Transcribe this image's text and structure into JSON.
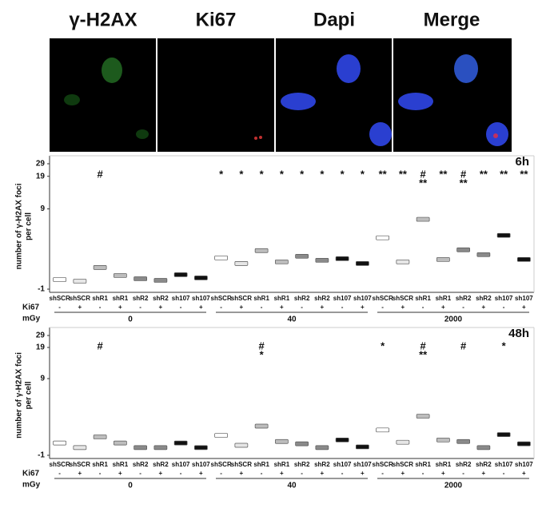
{
  "panels": [
    "γ-H2AX",
    "Ki67",
    "Dapi",
    "Merge"
  ],
  "chart_data": [
    {
      "type": "dot",
      "title": "6h",
      "ylabel": [
        "number of γ-H2AX foci",
        "per cell"
      ],
      "ylim": [
        -1,
        29
      ],
      "yticks": [
        -1,
        9,
        19,
        29
      ],
      "categories": [
        "shSCR",
        "shSCR",
        "shR1",
        "shR1",
        "shR2",
        "shR2",
        "sh107",
        "sh107",
        "shSCR",
        "shSCR",
        "shR1",
        "shR1",
        "shR2",
        "shR2",
        "sh107",
        "sh107",
        "shSCR",
        "shSCR",
        "shR1",
        "shR1",
        "shR2",
        "shR2",
        "sh107",
        "sh107"
      ],
      "ki67_label": "Ki67",
      "ki67": [
        "-",
        "+",
        "-",
        "+",
        "-",
        "+",
        "-",
        "+",
        "-",
        "+",
        "-",
        "+",
        "-",
        "+",
        "-",
        "+",
        "-",
        "+",
        "-",
        "+",
        "-",
        "+",
        "-",
        "+"
      ],
      "dose_label": "mGy",
      "doses": [
        "0",
        "40",
        "2000"
      ],
      "colors": [
        "#ffffff",
        "#e6e6e6",
        "#bdbdbd",
        "#bdbdbd",
        "#8a8a8a",
        "#8a8a8a",
        "#111111",
        "#111111",
        "#ffffff",
        "#e6e6e6",
        "#bdbdbd",
        "#bdbdbd",
        "#8a8a8a",
        "#8a8a8a",
        "#111111",
        "#111111",
        "#ffffff",
        "#e6e6e6",
        "#bdbdbd",
        "#bdbdbd",
        "#8a8a8a",
        "#8a8a8a",
        "#111111",
        "#111111"
      ],
      "values": [
        0.2,
        0,
        1.7,
        0.7,
        0.3,
        0.1,
        0.8,
        0.4,
        2.9,
        2.2,
        3.8,
        2.4,
        3.1,
        2.6,
        2.8,
        2.2,
        5.4,
        2.4,
        7.7,
        2.7,
        3.9,
        3.3,
        5.7,
        2.7
      ],
      "markers": [
        null,
        null,
        [
          "#"
        ],
        null,
        null,
        null,
        null,
        null,
        [
          "*"
        ],
        [
          "*"
        ],
        [
          "*"
        ],
        [
          "*"
        ],
        [
          "*"
        ],
        [
          "*"
        ],
        [
          "*"
        ],
        [
          "*"
        ],
        [
          "**"
        ],
        [
          "**"
        ],
        [
          "#",
          "**"
        ],
        [
          "**"
        ],
        [
          "#",
          "**"
        ],
        [
          "**"
        ],
        [
          "**"
        ],
        [
          "**"
        ]
      ]
    },
    {
      "type": "dot",
      "title": "48h",
      "ylabel": [
        "number of γ-H2AX foci",
        "per cell"
      ],
      "ylim": [
        -1,
        29
      ],
      "yticks": [
        -1,
        9,
        19,
        29
      ],
      "categories": [
        "shSCR",
        "shSCR",
        "shR1",
        "shR1",
        "shR2",
        "shR2",
        "sh107",
        "sh107",
        "shSCR",
        "shSCR",
        "shR1",
        "shR1",
        "shR2",
        "shR2",
        "sh107",
        "sh107",
        "shSCR",
        "shSCR",
        "shR1",
        "shR1",
        "shR2",
        "shR2",
        "sh107",
        "sh107"
      ],
      "ki67_label": "Ki67",
      "ki67": [
        "-",
        "+",
        "-",
        "+",
        "-",
        "+",
        "-",
        "+",
        "-",
        "+",
        "-",
        "+",
        "-",
        "+",
        "-",
        "+",
        "-",
        "+",
        "-",
        "+",
        "-",
        "+",
        "-",
        "+"
      ],
      "dose_label": "mGy",
      "doses": [
        "0",
        "40",
        "2000"
      ],
      "colors": [
        "#ffffff",
        "#e6e6e6",
        "#bdbdbd",
        "#bdbdbd",
        "#8a8a8a",
        "#8a8a8a",
        "#111111",
        "#111111",
        "#ffffff",
        "#e6e6e6",
        "#bdbdbd",
        "#bdbdbd",
        "#8a8a8a",
        "#8a8a8a",
        "#111111",
        "#111111",
        "#ffffff",
        "#e6e6e6",
        "#bdbdbd",
        "#bdbdbd",
        "#8a8a8a",
        "#8a8a8a",
        "#111111",
        "#111111"
      ],
      "values": [
        0.6,
        0,
        1.4,
        0.6,
        0,
        0,
        0.6,
        0,
        1.6,
        0.3,
        2.8,
        0.8,
        0.5,
        0,
        1,
        0.1,
        2.3,
        0.7,
        4.1,
        1,
        0.8,
        0,
        1.7,
        0.5
      ],
      "markers": [
        null,
        null,
        [
          "#"
        ],
        null,
        null,
        null,
        null,
        null,
        null,
        null,
        [
          "#",
          "*"
        ],
        null,
        null,
        null,
        null,
        null,
        [
          "*"
        ],
        null,
        [
          "#",
          "**"
        ],
        null,
        [
          "#"
        ],
        null,
        [
          "*"
        ],
        null
      ]
    }
  ]
}
